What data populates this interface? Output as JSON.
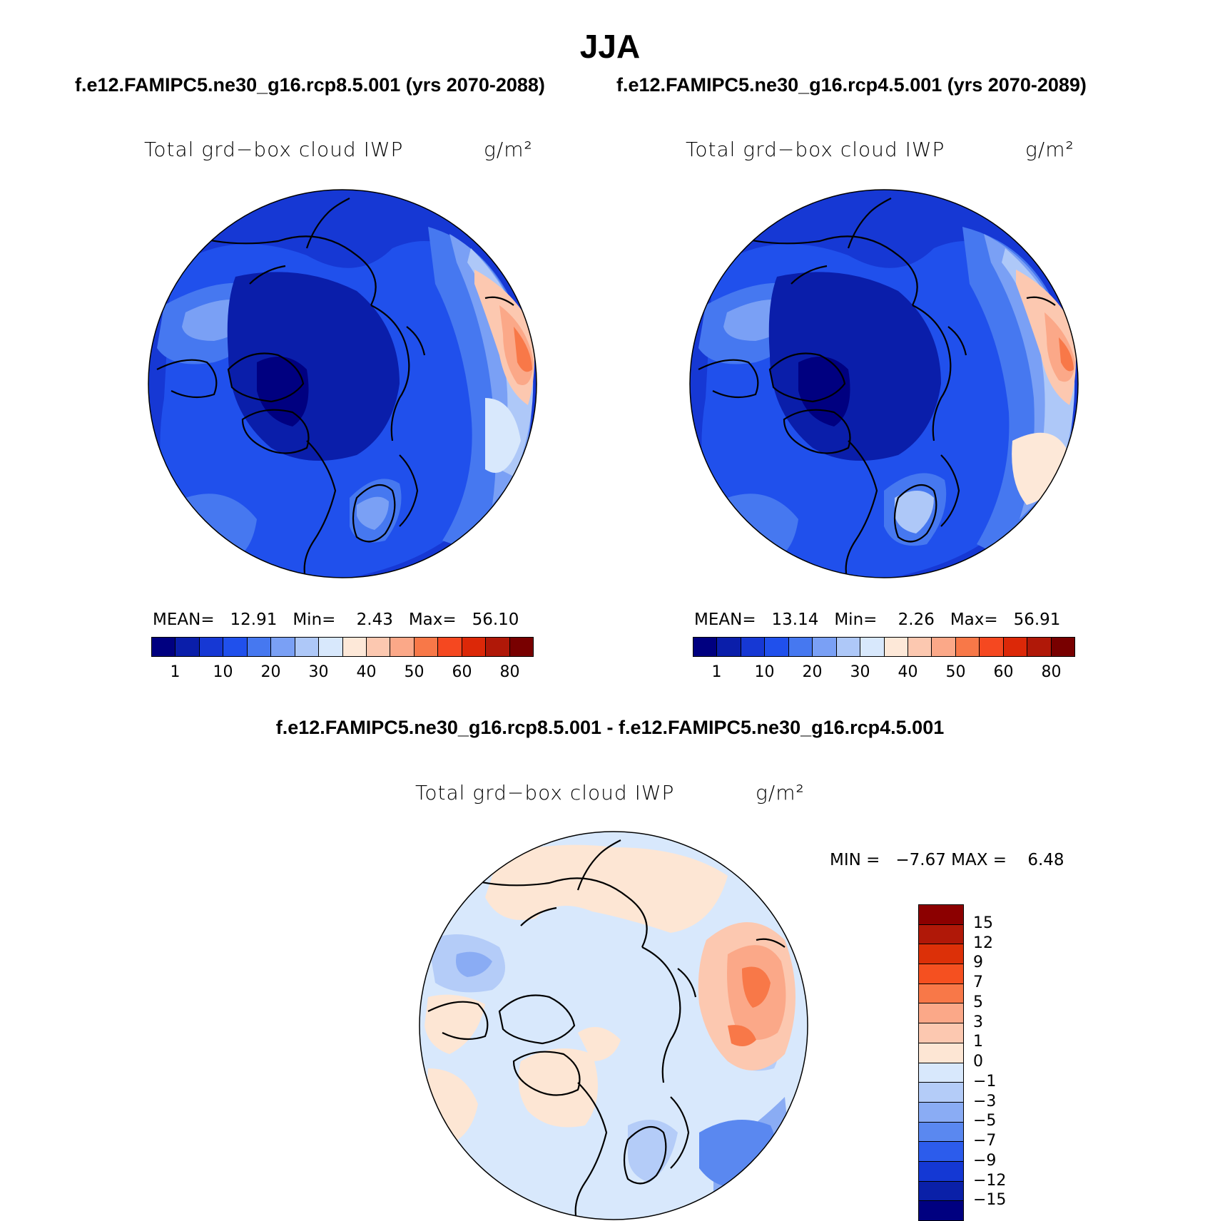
{
  "title": "JJA",
  "panels": [
    {
      "case_title": "f.e12.FAMIPC5.ne30_g16.rcp8.5.001 (yrs 2070-2088)",
      "variable": "Total grd−box cloud IWP",
      "units": "g/m²",
      "stats": {
        "mean_label": "MEAN=",
        "mean": "12.91",
        "min_label": "Min=",
        "min": "2.43",
        "max_label": "Max=",
        "max": "56.10"
      }
    },
    {
      "case_title": "f.e12.FAMIPC5.ne30_g16.rcp4.5.001 (yrs 2070-2089)",
      "variable": "Total grd−box cloud IWP",
      "units": "g/m²",
      "stats": {
        "mean_label": "MEAN=",
        "mean": "13.14",
        "min_label": "Min=",
        "min": "2.26",
        "max_label": "Max=",
        "max": "56.91"
      }
    }
  ],
  "colorbar": {
    "colors": [
      "#000080",
      "#0a1eaa",
      "#1638d4",
      "#2050ec",
      "#4678f0",
      "#7aa0f5",
      "#aec8f8",
      "#d8e8fc",
      "#fde8d8",
      "#fcc8b0",
      "#fba888",
      "#f87848",
      "#f54820",
      "#dc2808",
      "#b01808",
      "#780000"
    ],
    "tick_labels": [
      "1",
      "10",
      "20",
      "30",
      "40",
      "50",
      "60",
      "80"
    ]
  },
  "difference": {
    "title": "f.e12.FAMIPC5.ne30_g16.rcp8.5.001 - f.e12.FAMIPC5.ne30_g16.rcp4.5.001",
    "variable": "Total grd−box cloud IWP",
    "units": "g/m²",
    "stats": {
      "min_label": "MIN =",
      "min": "−7.67",
      "max_label": "MAX =",
      "max": "6.48"
    },
    "colorbar": {
      "colors_top_to_bottom": [
        "#8c0000",
        "#b01808",
        "#dc3008",
        "#f55020",
        "#f87848",
        "#fba888",
        "#fcc8b0",
        "#fde6d4",
        "#d8e8fc",
        "#b4ccf8",
        "#8aacf4",
        "#5a88f0",
        "#2c5cec",
        "#1438d4",
        "#0a20a8",
        "#000080"
      ],
      "tick_labels": [
        "15",
        "12",
        "9",
        "7",
        "5",
        "3",
        "1",
        "0",
        "−1",
        "−3",
        "−5",
        "−7",
        "−9",
        "−12",
        "−15"
      ]
    }
  }
}
